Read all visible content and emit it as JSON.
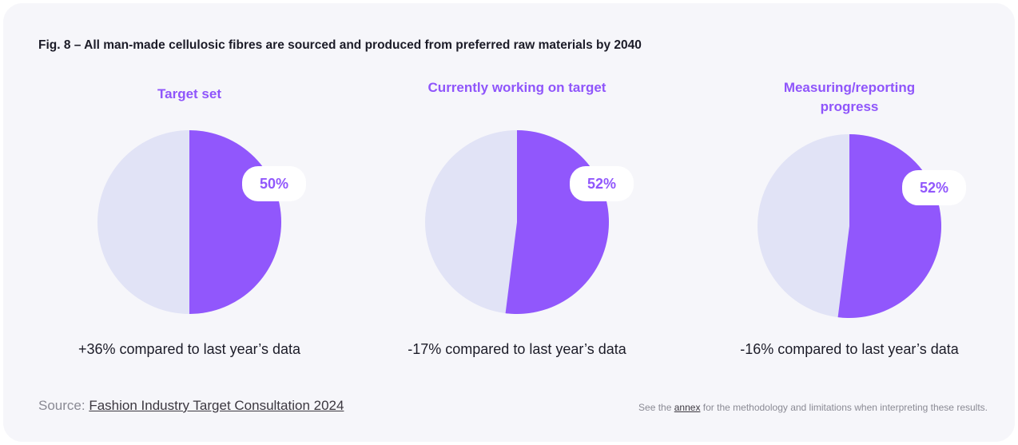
{
  "title": "Fig. 8 – All man-made cellulosic fibres are sourced and produced from preferred raw materials by 2040",
  "chart_data": [
    {
      "type": "pie",
      "title": "Target set",
      "values": [
        50
      ],
      "value_labels": [
        "50%"
      ],
      "color": "#9157fc",
      "rest_color": "#e1e3f6",
      "annotation": "+36% compared to last year’s data"
    },
    {
      "type": "pie",
      "title": "Currently working on target",
      "values": [
        52
      ],
      "value_labels": [
        "52%"
      ],
      "color": "#9157fc",
      "rest_color": "#e1e3f6",
      "annotation": "-17% compared to last year’s data"
    },
    {
      "type": "pie",
      "title": "Measuring/reporting progress",
      "values": [
        52
      ],
      "value_labels": [
        "52%"
      ],
      "color": "#9157fc",
      "rest_color": "#e1e3f6",
      "annotation": "-16% compared to last year’s data"
    }
  ],
  "source_label": "Source:",
  "source_link": "Fashion Industry Target Consultation 2024",
  "note_before": "See the",
  "note_link": "annex",
  "note_after": "for the methodology and limitations when interpreting these results."
}
